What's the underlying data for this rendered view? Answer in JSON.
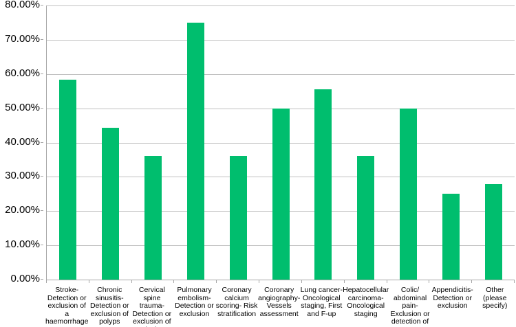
{
  "chart_data": {
    "type": "bar",
    "categories": [
      "Stroke- Detection or exclusion of a haemorrhage",
      "Chronic sinusitis- Detection or exclusion of polyps",
      "Cervical spine trauma- Detection or exclusion of a lesion",
      "Pulmonary embolism- Detection or exclusion",
      "Coronary calcium scoring- Risk stratification",
      "Coronary angiography- Vessels assessment",
      "Lung cancer- Oncological staging, First and F-up",
      "Hepatocellular carcinoma- Oncological staging",
      "Colic/ abdominal pain- Exclusion or detection of a stone",
      "Appendicitis- Detection or exclusion",
      "Other (please specify)"
    ],
    "values": [
      58.3,
      44.4,
      36.1,
      75.0,
      36.1,
      50.0,
      55.6,
      36.1,
      50.0,
      25.0,
      27.8
    ],
    "ytick_labels": [
      "0.00%",
      "10.00%",
      "20.00%",
      "30.00%",
      "40.00%",
      "50.00%",
      "60.00%",
      "70.00%",
      "80.00%"
    ],
    "ylim": [
      0,
      80
    ],
    "ytick_step": 10,
    "grid": true,
    "legend": null,
    "colors": {
      "bar": "#00BE6E",
      "gridline": "#BFBFBF",
      "axis": "#A6A6A6",
      "text": "#000000"
    }
  }
}
